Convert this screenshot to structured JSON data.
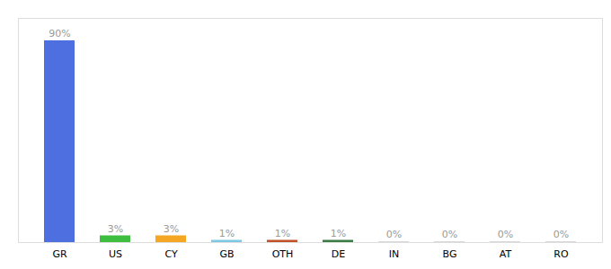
{
  "chart_data": {
    "type": "bar",
    "categories": [
      "GR",
      "US",
      "CY",
      "GB",
      "OTH",
      "DE",
      "IN",
      "BG",
      "AT",
      "RO"
    ],
    "values": [
      90,
      3,
      3,
      1,
      1,
      1,
      0.3,
      0.3,
      0.3,
      0.3
    ],
    "value_labels": [
      "90%",
      "3%",
      "3%",
      "1%",
      "1%",
      "1%",
      "0%",
      "0%",
      "0%",
      "0%"
    ],
    "colors": [
      "#4d6fe0",
      "#3ebd3e",
      "#f5a623",
      "#7ec8e3",
      "#c0522a",
      "#3a7d44",
      "#cccccc",
      "#cccccc",
      "#cccccc",
      "#cccccc"
    ],
    "ylim": [
      0,
      100
    ],
    "data_labels": true,
    "tick_labels": "x",
    "grid": false
  }
}
